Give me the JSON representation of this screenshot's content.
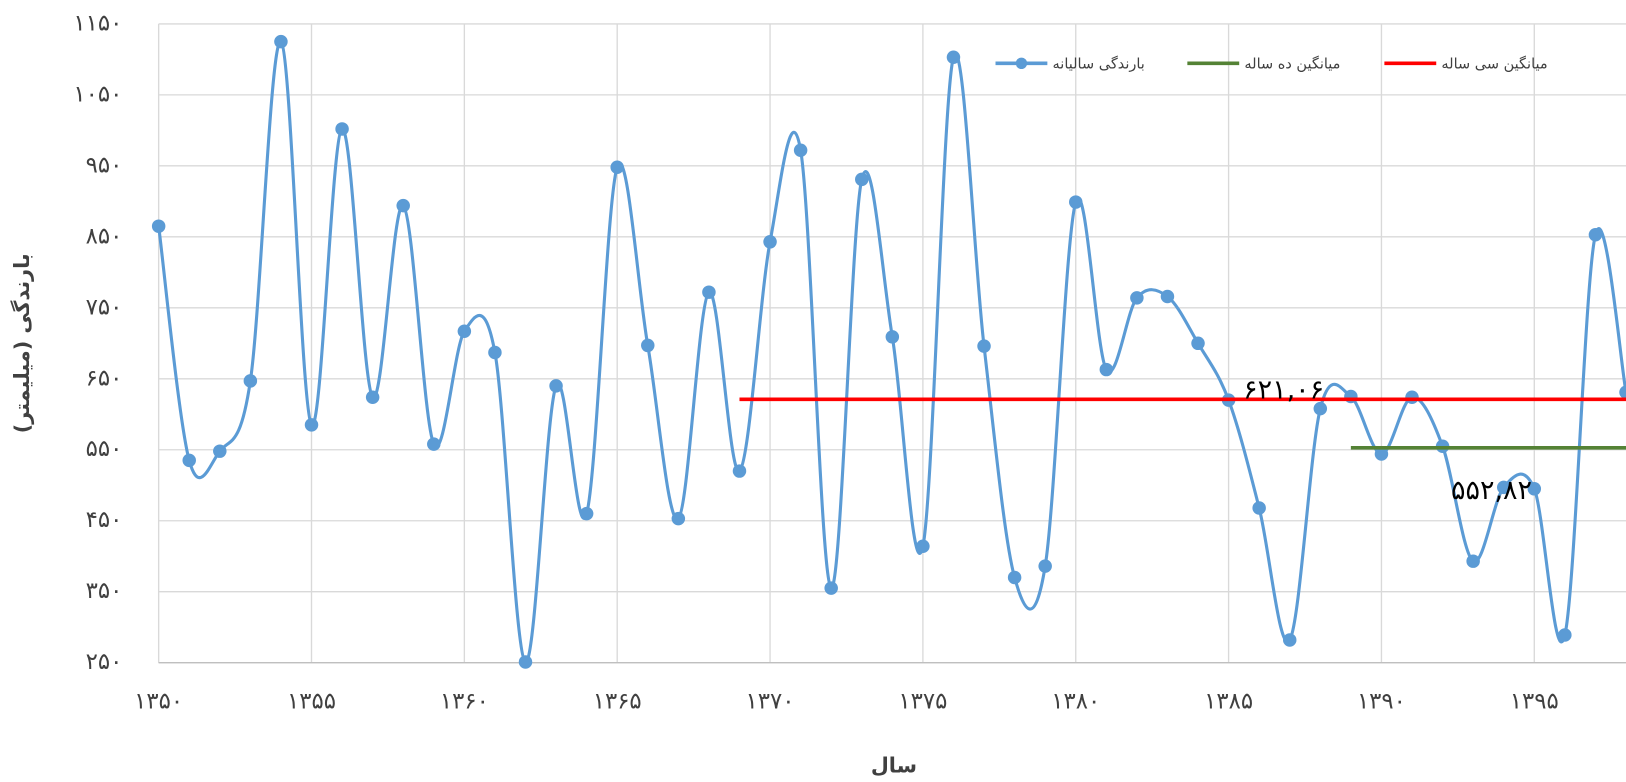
{
  "chart_data": {
    "type": "line",
    "x_label": "سال",
    "y_label": "بارندگی (میلیمتر)",
    "x": [
      1350,
      1351,
      1352,
      1353,
      1354,
      1355,
      1356,
      1357,
      1358,
      1359,
      1360,
      1361,
      1362,
      1363,
      1364,
      1365,
      1366,
      1367,
      1368,
      1369,
      1370,
      1371,
      1372,
      1373,
      1374,
      1375,
      1376,
      1377,
      1378,
      1379,
      1380,
      1381,
      1382,
      1383,
      1384,
      1385,
      1386,
      1387,
      1388,
      1389,
      1390,
      1391,
      1392,
      1393,
      1394,
      1395,
      1396,
      1397,
      1398
    ],
    "series": [
      {
        "name": "بارندگی سالیانه",
        "color": "#5b9bd5",
        "smooth": true,
        "markers": true,
        "values": [
          865,
          535,
          548,
          647,
          1125,
          585,
          1002,
          624,
          894,
          558,
          717,
          687,
          251,
          640,
          460,
          948,
          697,
          453,
          772,
          520,
          843,
          972,
          355,
          931,
          709,
          414,
          1103,
          696,
          370,
          386,
          899,
          663,
          764,
          766,
          700,
          620,
          468,
          282,
          608,
          625,
          544,
          624,
          555,
          393,
          497,
          495,
          289,
          853,
          631
        ]
      },
      {
        "name": "میانگین ده ساله",
        "color": "#548235",
        "smooth": false,
        "markers": false,
        "values": [
          null,
          null,
          null,
          null,
          null,
          null,
          null,
          null,
          null,
          null,
          null,
          null,
          null,
          null,
          null,
          null,
          null,
          null,
          null,
          null,
          null,
          null,
          null,
          null,
          null,
          null,
          null,
          null,
          null,
          null,
          null,
          null,
          null,
          null,
          null,
          null,
          null,
          null,
          null,
          552.82,
          552.82,
          552.82,
          552.82,
          552.82,
          552.82,
          552.82,
          552.82,
          552.82,
          552.82
        ],
        "value_label": "۵۵۲,۸۲"
      },
      {
        "name": "میانگین سی ساله",
        "color": "#ff0000",
        "smooth": false,
        "markers": false,
        "values": [
          null,
          null,
          null,
          null,
          null,
          null,
          null,
          null,
          null,
          null,
          null,
          null,
          null,
          null,
          null,
          null,
          null,
          null,
          null,
          621.06,
          621.06,
          621.06,
          621.06,
          621.06,
          621.06,
          621.06,
          621.06,
          621.06,
          621.06,
          621.06,
          621.06,
          621.06,
          621.06,
          621.06,
          621.06,
          621.06,
          621.06,
          621.06,
          621.06,
          621.06,
          621.06,
          621.06,
          621.06,
          621.06,
          621.06,
          621.06,
          621.06,
          621.06,
          621.06
        ],
        "value_label": "۶۲۱,۰۶"
      }
    ],
    "xlim": [
      1350,
      1398
    ],
    "xticks": [
      {
        "value": 1350,
        "label": "۱۳۵۰"
      },
      {
        "value": 1355,
        "label": "۱۳۵۵"
      },
      {
        "value": 1360,
        "label": "۱۳۶۰"
      },
      {
        "value": 1365,
        "label": "۱۳۶۵"
      },
      {
        "value": 1370,
        "label": "۱۳۷۰"
      },
      {
        "value": 1375,
        "label": "۱۳۷۵"
      },
      {
        "value": 1380,
        "label": "۱۳۸۰"
      },
      {
        "value": 1385,
        "label": "۱۳۸۵"
      },
      {
        "value": 1390,
        "label": "۱۳۹۰"
      },
      {
        "value": 1395,
        "label": "۱۳۹۵"
      }
    ],
    "ylim": [
      250,
      1150
    ],
    "yticks": [
      {
        "value": 250,
        "label": "۲۵۰"
      },
      {
        "value": 350,
        "label": "۳۵۰"
      },
      {
        "value": 450,
        "label": "۴۵۰"
      },
      {
        "value": 550,
        "label": "۵۵۰"
      },
      {
        "value": 650,
        "label": "۶۵۰"
      },
      {
        "value": 750,
        "label": "۷۵۰"
      },
      {
        "value": 850,
        "label": "۸۵۰"
      },
      {
        "value": 950,
        "label": "۹۵۰"
      },
      {
        "value": 1050,
        "label": "۱۰۵۰"
      },
      {
        "value": 1150,
        "label": "۱۱۵۰"
      }
    ],
    "grid": true,
    "legend": "top-right"
  }
}
